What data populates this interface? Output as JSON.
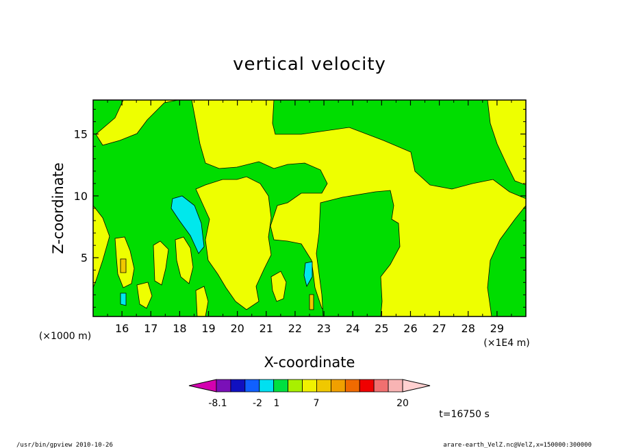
{
  "chart_data": {
    "type": "heatmap",
    "title": "vertical velocity",
    "xlabel": "X-coordinate",
    "ylabel": "Z-coordinate",
    "xunit": "(×1E4 m)",
    "yunit": "(×1000 m)",
    "x_ticks": [
      "16",
      "17",
      "18",
      "19",
      "20",
      "21",
      "22",
      "23",
      "24",
      "25",
      "26",
      "27",
      "28",
      "29"
    ],
    "x_tick_values": [
      16,
      17,
      18,
      19,
      20,
      21,
      22,
      23,
      24,
      25,
      26,
      27,
      28,
      29
    ],
    "y_ticks": [
      "5",
      "10",
      "15"
    ],
    "y_tick_values": [
      5,
      10,
      15
    ],
    "xlim": [
      15.0,
      30.0
    ],
    "ylim": [
      0.25,
      17.75
    ],
    "time_label": "t=16750 s",
    "colorbar": {
      "labels": [
        "-8.1",
        "-2",
        "1",
        "7",
        "20"
      ],
      "colors": [
        "#d400b0",
        "#7a10b8",
        "#1010c0",
        "#1060ff",
        "#00e0f0",
        "#00e040",
        "#a8f000",
        "#f0f000",
        "#f0c800",
        "#f0a000",
        "#f06a00",
        "#f00000",
        "#f07070",
        "#f8b4b4",
        "#ffd0d0"
      ]
    },
    "field_colors": {
      "background_positive": "#eeff00",
      "near_zero_negative": "#00dd00",
      "negative": "#00e8ec"
    }
  },
  "footer": {
    "left": "/usr/bin/gpview   2010-10-26",
    "right": "arare-earth_VelZ.nc@VelZ,x=150000:300000"
  }
}
